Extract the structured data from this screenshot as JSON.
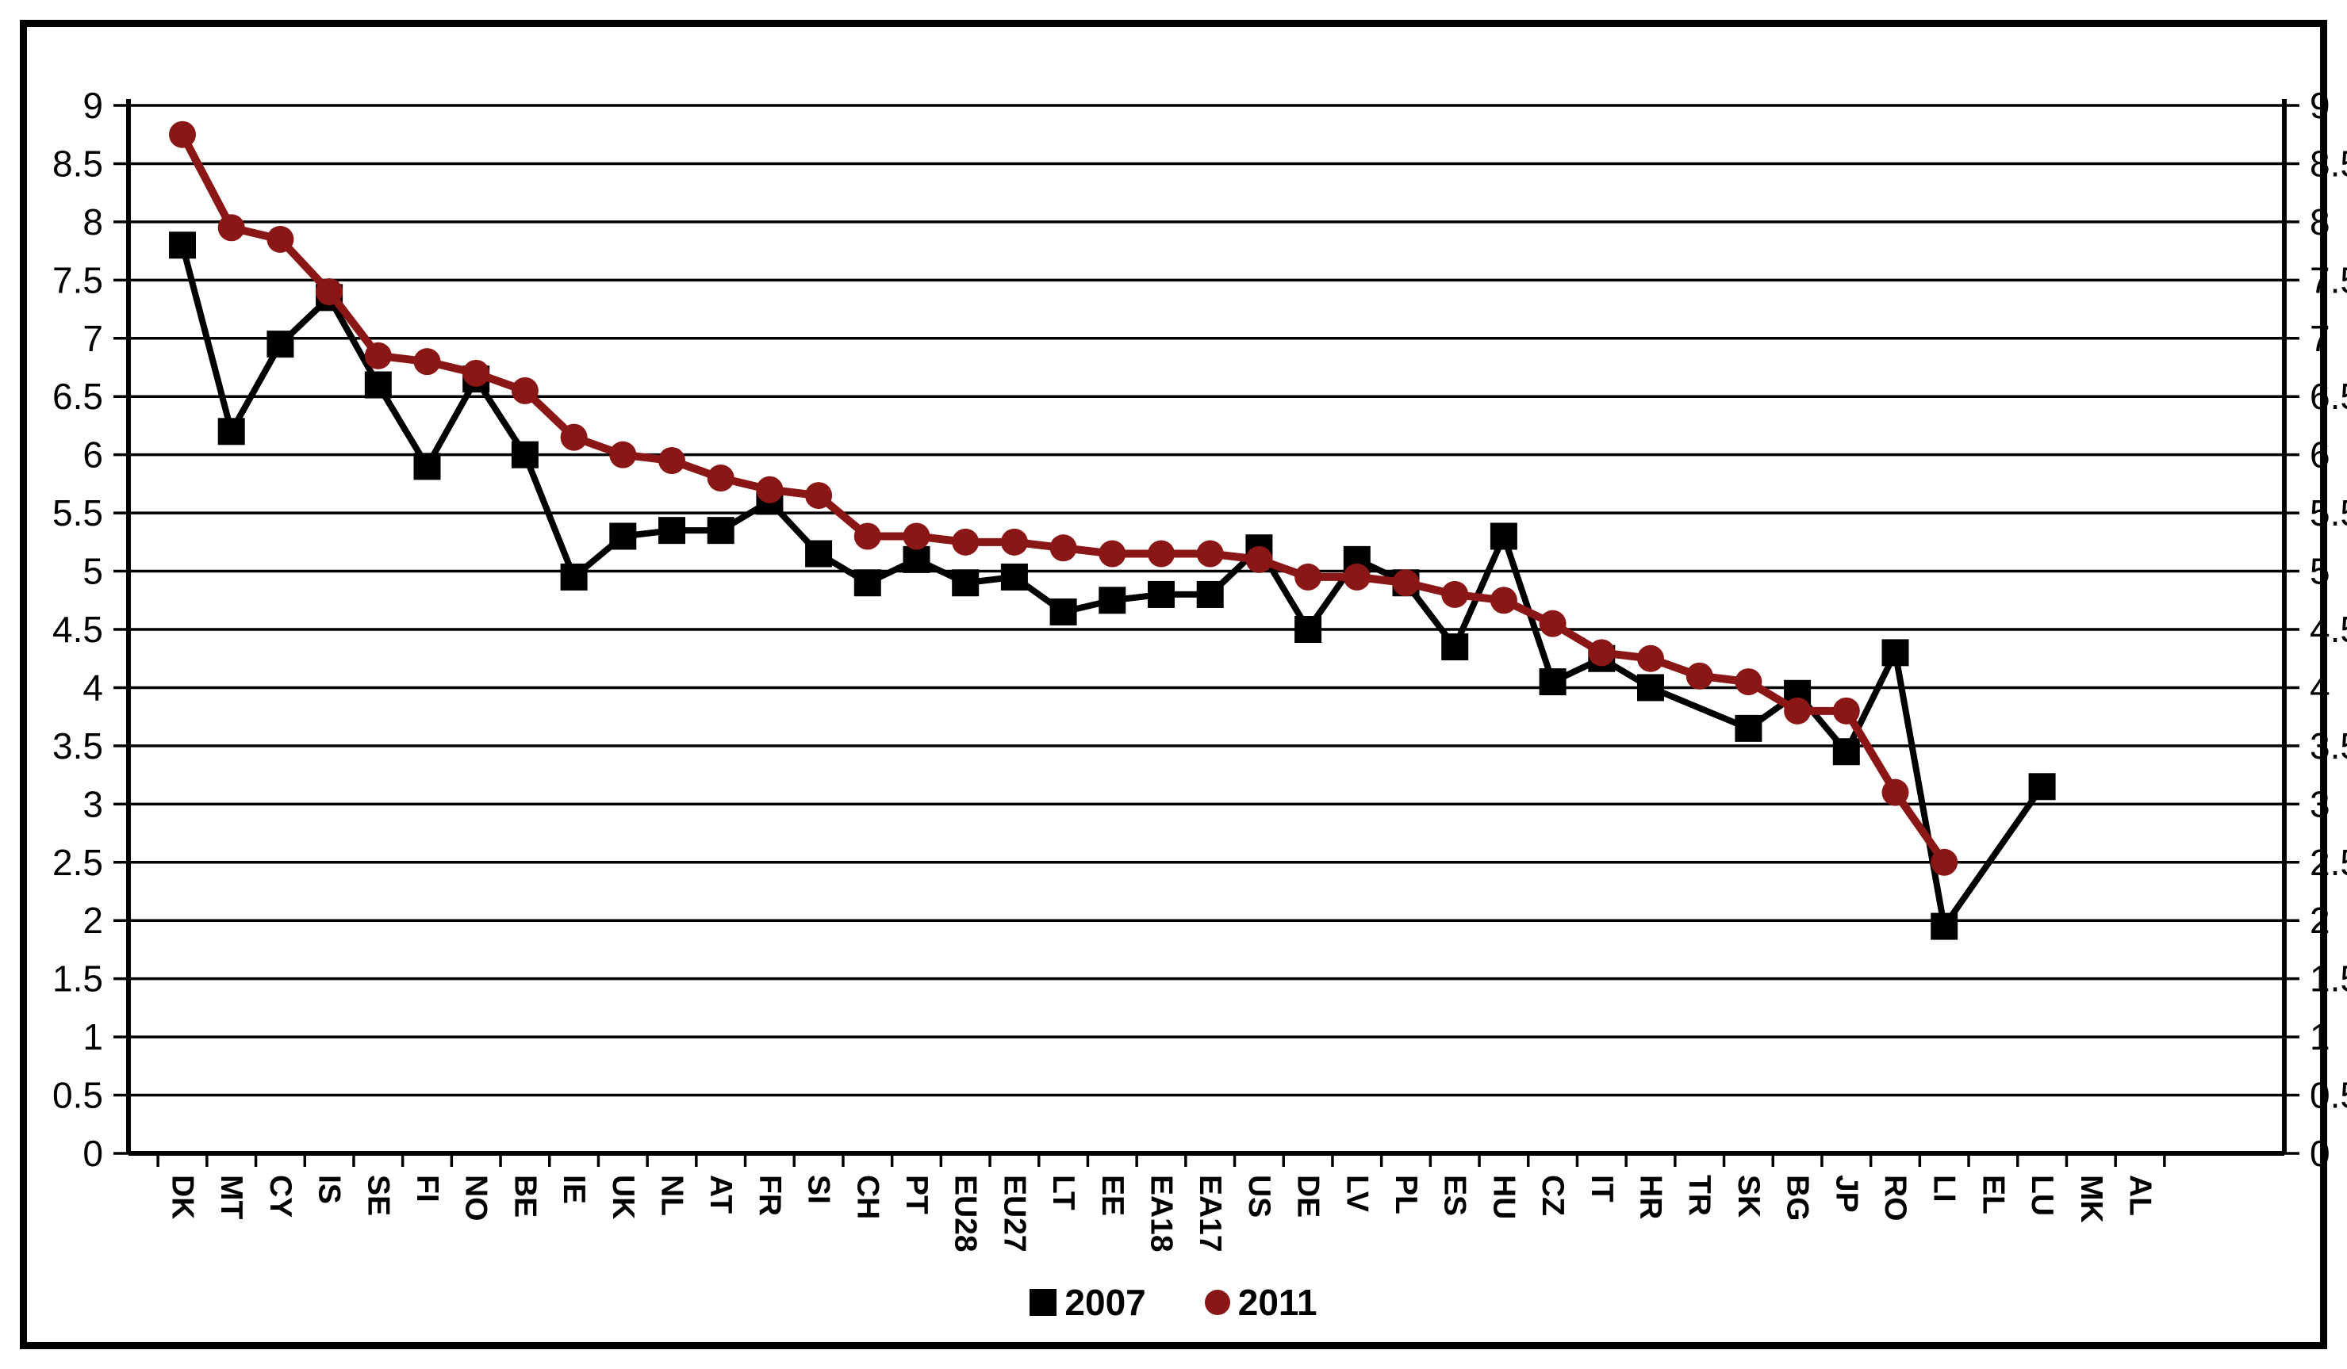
{
  "chart_data": {
    "type": "line",
    "title": "",
    "categories": [
      "DK",
      "MT",
      "CY",
      "IS",
      "SE",
      "FI",
      "NO",
      "BE",
      "IE",
      "UK",
      "NL",
      "AT",
      "FR",
      "SI",
      "CH",
      "PT",
      "EU28",
      "EU27",
      "LT",
      "EE",
      "EA18",
      "EA17",
      "US",
      "DE",
      "LV",
      "PL",
      "ES",
      "HU",
      "CZ",
      "IT",
      "HR",
      "TR",
      "SK",
      "BG",
      "JP",
      "RO",
      "LI",
      "EL",
      "LU",
      "MK",
      "AL"
    ],
    "series": [
      {
        "name": "2007",
        "marker": "square",
        "color": "#000000",
        "values": [
          7.8,
          6.2,
          6.95,
          7.35,
          6.6,
          5.9,
          6.65,
          6.0,
          4.95,
          5.3,
          5.35,
          5.35,
          5.6,
          5.15,
          4.9,
          5.1,
          4.9,
          4.95,
          4.65,
          4.75,
          4.8,
          4.8,
          5.2,
          4.5,
          5.1,
          4.9,
          4.35,
          5.3,
          4.05,
          4.25,
          4.0,
          null,
          3.65,
          3.95,
          3.45,
          4.3,
          1.95,
          null,
          3.15,
          null,
          null
        ]
      },
      {
        "name": "2011",
        "marker": "circle",
        "color": "#8B1616",
        "values": [
          8.75,
          7.95,
          7.85,
          7.4,
          6.85,
          6.8,
          6.7,
          6.55,
          6.15,
          6.0,
          5.95,
          5.8,
          5.7,
          5.65,
          5.3,
          5.3,
          5.25,
          5.25,
          5.2,
          5.15,
          5.15,
          5.15,
          5.1,
          4.95,
          4.95,
          4.9,
          4.8,
          4.75,
          4.55,
          4.3,
          4.25,
          4.1,
          4.05,
          3.8,
          3.8,
          3.1,
          2.5,
          null,
          null,
          null,
          null
        ]
      }
    ],
    "ylim": [
      0,
      9
    ],
    "ytick_step": 0.5,
    "y_ticks": [
      "9",
      "8.5",
      "8",
      "7.5",
      "7",
      "6.5",
      "6",
      "5.5",
      "5",
      "4.5",
      "4",
      "3.5",
      "3",
      "2.5",
      "2",
      "1.5",
      "1",
      "0.5",
      "0"
    ],
    "y_axis_sides": [
      "left",
      "right"
    ],
    "grid": true,
    "gap_policy": "span-gaps",
    "legend_position": "bottom",
    "xlabel": "",
    "ylabel": ""
  }
}
